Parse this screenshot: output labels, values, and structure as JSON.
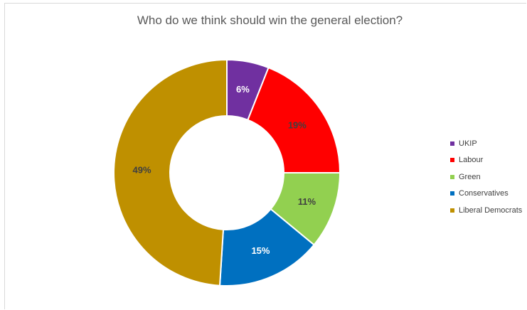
{
  "chart_data": {
    "type": "donut",
    "title": "Who do we think should win the general election?",
    "categories": [
      "UKIP",
      "Labour",
      "Green",
      "Conservatives",
      "Liberal Democrats"
    ],
    "values": [
      6,
      19,
      11,
      15,
      49
    ],
    "data_labels": [
      "6%",
      "19%",
      "11%",
      "15%",
      "49%"
    ],
    "colors": [
      "#7030a0",
      "#ff0000",
      "#92d050",
      "#0070c0",
      "#bf9000"
    ],
    "legend_position": "right"
  }
}
